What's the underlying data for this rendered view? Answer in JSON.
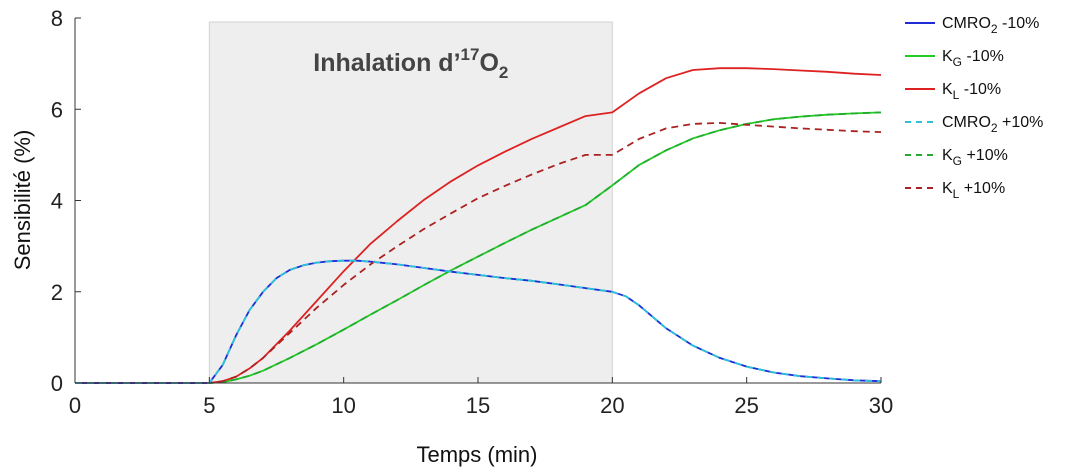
{
  "chart_data": {
    "type": "line",
    "xlabel": "Temps (min)",
    "ylabel": "Sensibilité (%)",
    "xlim": [
      0,
      30
    ],
    "ylim": [
      0,
      8
    ],
    "xticks": [
      "0",
      "5",
      "10",
      "15",
      "20",
      "25",
      "30"
    ],
    "yticks": [
      "0",
      "2",
      "4",
      "6",
      "8"
    ],
    "grid": false,
    "legend_position": "right",
    "shaded_region": {
      "x_start": 5,
      "x_end": 20,
      "label_main": "Inhalation d’",
      "label_sup": "17",
      "label_mid": "O",
      "label_sub": "2"
    },
    "series": [
      {
        "name": "CMRO2 -10%",
        "legend_base": "CMRO",
        "legend_sub": "2",
        "legend_tail": " -10%",
        "color": "#1f2bd6",
        "dashed": false,
        "x": [
          0,
          5,
          5.5,
          6,
          6.5,
          7,
          7.5,
          8,
          8.5,
          9,
          9.5,
          10,
          10.5,
          11,
          12,
          13,
          14,
          15,
          16,
          17,
          18,
          19,
          20,
          20.5,
          21,
          21.5,
          22,
          23,
          24,
          25,
          26,
          27,
          28,
          29,
          30
        ],
        "y": [
          0,
          0,
          0.4,
          1.05,
          1.6,
          2.0,
          2.3,
          2.48,
          2.58,
          2.64,
          2.67,
          2.68,
          2.68,
          2.66,
          2.6,
          2.52,
          2.44,
          2.37,
          2.3,
          2.24,
          2.16,
          2.08,
          2.0,
          1.9,
          1.7,
          1.45,
          1.2,
          0.82,
          0.55,
          0.36,
          0.23,
          0.15,
          0.1,
          0.06,
          0.04
        ]
      },
      {
        "name": "KG -10%",
        "legend_base": "K",
        "legend_sub": "G",
        "legend_tail": " -10%",
        "color": "#22cc22",
        "dashed": false,
        "x": [
          0,
          5,
          5.5,
          6,
          6.5,
          7,
          8,
          9,
          10,
          11,
          12,
          13,
          14,
          15,
          16,
          17,
          18,
          19,
          20,
          21,
          22,
          23,
          24,
          25,
          26,
          27,
          28,
          29,
          30
        ],
        "y": [
          0,
          0,
          0.02,
          0.08,
          0.16,
          0.27,
          0.55,
          0.85,
          1.17,
          1.5,
          1.82,
          2.15,
          2.47,
          2.77,
          3.07,
          3.36,
          3.63,
          3.9,
          4.33,
          4.78,
          5.1,
          5.36,
          5.54,
          5.68,
          5.78,
          5.84,
          5.88,
          5.91,
          5.93
        ]
      },
      {
        "name": "KL -10%",
        "legend_base": "K",
        "legend_sub": "L",
        "legend_tail": " -10%",
        "color": "#dd2222",
        "dashed": false,
        "x": [
          0,
          5,
          5.5,
          6,
          6.5,
          7,
          8,
          9,
          10,
          11,
          12,
          13,
          14,
          15,
          16,
          17,
          18,
          19,
          20,
          21,
          22,
          23,
          24,
          25,
          26,
          27,
          28,
          29,
          30
        ],
        "y": [
          0,
          0,
          0.04,
          0.14,
          0.32,
          0.55,
          1.15,
          1.8,
          2.45,
          3.05,
          3.55,
          4.02,
          4.42,
          4.77,
          5.07,
          5.35,
          5.6,
          5.85,
          5.93,
          6.35,
          6.68,
          6.86,
          6.9,
          6.9,
          6.88,
          6.85,
          6.82,
          6.78,
          6.75
        ]
      },
      {
        "name": "CMRO2 +10%",
        "legend_base": "CMRO",
        "legend_sub": "2",
        "legend_tail": " +10%",
        "color": "#29c3d8",
        "dashed": true,
        "x": [
          0,
          5,
          5.5,
          6,
          6.5,
          7,
          7.5,
          8,
          8.5,
          9,
          9.5,
          10,
          10.5,
          11,
          12,
          13,
          14,
          15,
          16,
          17,
          18,
          19,
          20,
          20.5,
          21,
          21.5,
          22,
          23,
          24,
          25,
          26,
          27,
          28,
          29,
          30
        ],
        "y": [
          0,
          0,
          0.4,
          1.05,
          1.6,
          2.0,
          2.3,
          2.48,
          2.58,
          2.64,
          2.67,
          2.68,
          2.68,
          2.66,
          2.6,
          2.52,
          2.44,
          2.37,
          2.3,
          2.24,
          2.16,
          2.08,
          2.0,
          1.9,
          1.7,
          1.45,
          1.2,
          0.82,
          0.55,
          0.36,
          0.23,
          0.15,
          0.1,
          0.06,
          0.04
        ]
      },
      {
        "name": "KG +10%",
        "legend_base": "K",
        "legend_sub": "G",
        "legend_tail": " +10%",
        "color": "#22aa33",
        "dashed": true,
        "x": [
          0,
          5,
          5.5,
          6,
          6.5,
          7,
          8,
          9,
          10,
          11,
          12,
          13,
          14,
          15,
          16,
          17,
          18,
          19,
          20,
          21,
          22,
          23,
          24,
          25,
          26,
          27,
          28,
          29,
          30
        ],
        "y": [
          0,
          0,
          0.02,
          0.08,
          0.16,
          0.27,
          0.55,
          0.85,
          1.17,
          1.5,
          1.82,
          2.15,
          2.47,
          2.77,
          3.07,
          3.36,
          3.63,
          3.9,
          4.33,
          4.78,
          5.1,
          5.36,
          5.54,
          5.68,
          5.78,
          5.84,
          5.88,
          5.91,
          5.93
        ]
      },
      {
        "name": "KL +10%",
        "legend_base": "K",
        "legend_sub": "L",
        "legend_tail": " +10%",
        "color": "#aa2222",
        "dashed": true,
        "x": [
          0,
          5,
          5.5,
          6,
          6.5,
          7,
          8,
          9,
          10,
          11,
          12,
          13,
          14,
          15,
          16,
          17,
          18,
          19,
          20,
          21,
          22,
          23,
          24,
          25,
          26,
          27,
          28,
          29,
          30
        ],
        "y": [
          0,
          0,
          0.04,
          0.14,
          0.32,
          0.55,
          1.1,
          1.65,
          2.15,
          2.6,
          3.0,
          3.38,
          3.72,
          4.05,
          4.32,
          4.57,
          4.8,
          5.0,
          5.0,
          5.35,
          5.58,
          5.68,
          5.7,
          5.66,
          5.62,
          5.58,
          5.55,
          5.52,
          5.5
        ]
      }
    ]
  }
}
